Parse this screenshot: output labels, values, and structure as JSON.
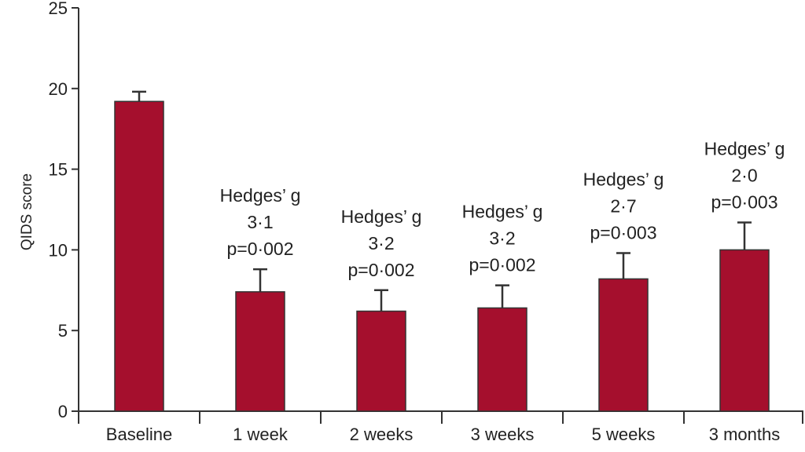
{
  "chart_data": {
    "type": "bar",
    "title": "",
    "xlabel": "",
    "ylabel": "QIDS score",
    "ylim": [
      0,
      25
    ],
    "yticks": [
      "0",
      "5",
      "10",
      "15",
      "20",
      "25"
    ],
    "grid": false,
    "bar_color": "#a50f2d",
    "categories": [
      "Baseline",
      "1 week",
      "2 weeks",
      "3 weeks",
      "5 weeks",
      "3 months"
    ],
    "values": [
      19.2,
      7.4,
      6.2,
      6.4,
      8.2,
      10.0
    ],
    "error_upper": [
      19.8,
      8.8,
      7.5,
      7.8,
      9.8,
      11.7
    ],
    "annotations": [
      [],
      [
        "Hedges’ g",
        "3·1",
        "p=0·002"
      ],
      [
        "Hedges’ g",
        "3·2",
        "p=0·002"
      ],
      [
        "Hedges’ g",
        "3·2",
        "p=0·002"
      ],
      [
        "Hedges’ g",
        "2·7",
        "p=0·003"
      ],
      [
        "Hedges’ g",
        "2·0",
        "p=0·003"
      ]
    ]
  }
}
